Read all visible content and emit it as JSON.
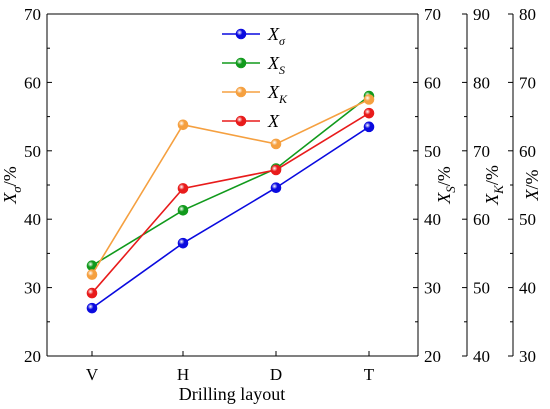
{
  "chart_data": {
    "type": "line",
    "categories": [
      "V",
      "H",
      "D",
      "T"
    ],
    "xlabel": "Drilling layout",
    "axes": [
      {
        "id": "left",
        "label_base": "X",
        "label_sub": "σ",
        "label_suffix": "/%",
        "ylim": [
          20,
          70
        ],
        "ticks": [
          20,
          30,
          40,
          50,
          60,
          70
        ]
      },
      {
        "id": "right1",
        "label_base": "X",
        "label_sub": "S",
        "label_suffix": "/%",
        "ylim": [
          20,
          70
        ],
        "ticks": [
          20,
          30,
          40,
          50,
          60,
          70
        ]
      },
      {
        "id": "right2",
        "label_base": "X",
        "label_sub": "K",
        "label_suffix": "/%",
        "ylim": [
          40,
          90
        ],
        "ticks": [
          40,
          50,
          60,
          70,
          80,
          90
        ]
      },
      {
        "id": "right3",
        "label_base": "X",
        "label_sub": "",
        "label_suffix": "/%",
        "ylim": [
          30,
          80
        ],
        "ticks": [
          30,
          40,
          50,
          60,
          70,
          80
        ]
      }
    ],
    "series": [
      {
        "name": "Xσ",
        "legend_base": "X",
        "legend_sub": "σ",
        "axis": "left",
        "color": "#0a0adf",
        "values": [
          27.0,
          36.5,
          44.6,
          53.5
        ]
      },
      {
        "name": "XS",
        "legend_base": "X",
        "legend_sub": "S",
        "axis": "right1",
        "color": "#119a1c",
        "values": [
          33.2,
          41.3,
          47.4,
          58.0
        ]
      },
      {
        "name": "XK",
        "legend_base": "X",
        "legend_sub": "K",
        "axis": "right2",
        "color": "#f5a040",
        "values": [
          51.9,
          73.8,
          71.0,
          77.5
        ]
      },
      {
        "name": "X",
        "legend_base": "X",
        "legend_sub": "",
        "axis": "right3",
        "color": "#e81b1b",
        "values": [
          39.2,
          54.5,
          57.2,
          65.5
        ]
      }
    ],
    "legend_position": "top-center",
    "grid": false
  }
}
